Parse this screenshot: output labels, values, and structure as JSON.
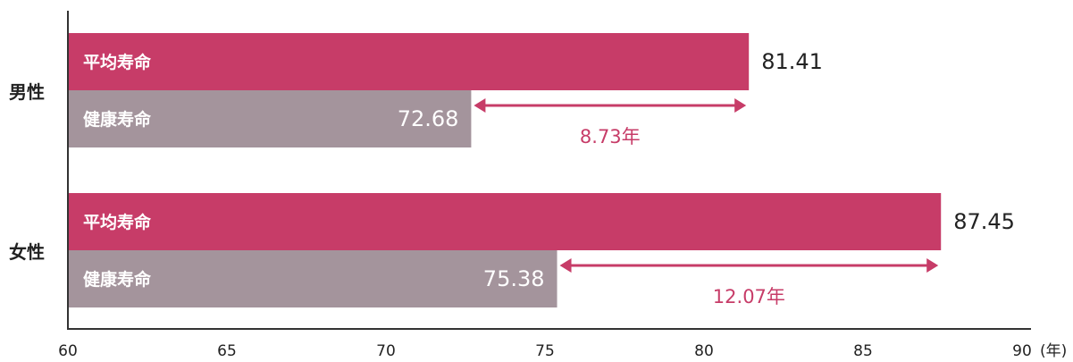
{
  "chart_data": {
    "type": "bar",
    "orientation": "horizontal",
    "title": "",
    "xlabel": "",
    "ylabel": "",
    "xlim": [
      60,
      90
    ],
    "unit": "(年)",
    "x_ticks": [
      "60",
      "65",
      "70",
      "75",
      "80",
      "85",
      "90"
    ],
    "categories": [
      "男性",
      "女性"
    ],
    "series": [
      {
        "name": "平均寿命",
        "values": [
          81.41,
          87.45
        ],
        "color": "#c73c68"
      },
      {
        "name": "健康寿命",
        "values": [
          72.68,
          75.38
        ],
        "color": "#a4949c"
      }
    ],
    "value_labels": {
      "avg": [
        "81.41",
        "87.45"
      ],
      "healthy": [
        "72.68",
        "75.38"
      ]
    },
    "gaps": [
      {
        "value": 8.73,
        "label": "8.73年"
      },
      {
        "value": 12.07,
        "label": "12.07年"
      }
    ],
    "colors": {
      "accent": "#c73c68",
      "healthy": "#a4949c",
      "axis": "#333333"
    },
    "grid": false,
    "legend": "none"
  }
}
